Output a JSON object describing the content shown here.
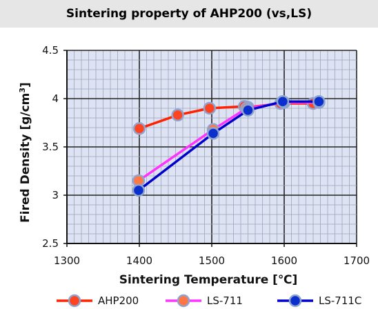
{
  "chart_data": {
    "type": "line",
    "title": "Sintering property of AHP200 (vs,LS)",
    "xlabel": "Sintering Temperature [℃]",
    "ylabel_main": "Fired Density [g/cm",
    "ylabel_sup": "3",
    "ylabel_end": "]",
    "xlim": [
      1300,
      1700
    ],
    "ylim": [
      2.5,
      4.5
    ],
    "x_ticks": [
      "1300",
      "1400",
      "1500",
      "1600",
      "1700"
    ],
    "y_ticks": [
      "2.5",
      "3",
      "3.5",
      "4",
      "4.5"
    ],
    "grid": true,
    "legend_position": "bottom",
    "series": [
      {
        "name": "AHP200",
        "line_color": "#ff2200",
        "marker_color": "#ff4422",
        "points": [
          [
            1400,
            3.69
          ],
          [
            1453,
            3.83
          ],
          [
            1497,
            3.9
          ],
          [
            1545,
            3.92
          ],
          [
            1550,
            3.91
          ],
          [
            1595,
            3.95
          ],
          [
            1640,
            3.95
          ]
        ]
      },
      {
        "name": "LS-711",
        "line_color": "#ff33ff",
        "marker_color": "#ff7744",
        "points": [
          [
            1399,
            3.15
          ],
          [
            1502,
            3.68
          ],
          [
            1548,
            3.9
          ],
          [
            1600,
            3.96
          ],
          [
            1648,
            3.96
          ]
        ]
      },
      {
        "name": "LS-711C",
        "line_color": "#0000cc",
        "marker_color": "#0a2fcc",
        "points": [
          [
            1399,
            3.05
          ],
          [
            1502,
            3.64
          ],
          [
            1550,
            3.88
          ],
          [
            1598,
            3.97
          ],
          [
            1648,
            3.97
          ]
        ]
      }
    ]
  }
}
